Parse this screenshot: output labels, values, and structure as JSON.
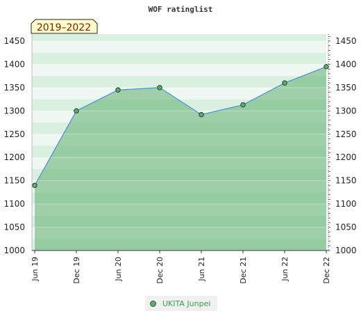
{
  "chart_data": {
    "type": "area",
    "title": "WOF ratinglist",
    "period_label": "2019–2022",
    "x": [
      "Jun 19",
      "Dec 19",
      "Jun 20",
      "Dec 20",
      "Jun 21",
      "Dec 21",
      "Jun 22",
      "Dec 22"
    ],
    "series": [
      {
        "name": "UKITA Junpei",
        "values": [
          1140,
          1300,
          1345,
          1350,
          1292,
          1313,
          1360,
          1395
        ]
      }
    ],
    "yticks": [
      1000,
      1050,
      1100,
      1150,
      1200,
      1250,
      1300,
      1350,
      1400,
      1450
    ],
    "ylim": [
      1000,
      1465
    ],
    "legend_position": "bottom-center",
    "colors": {
      "line": "#4a90d9",
      "marker": "#5fae6e",
      "fill": "#5fae6e",
      "band_a": "#d9efe0",
      "band_b": "#eef7f1"
    }
  }
}
